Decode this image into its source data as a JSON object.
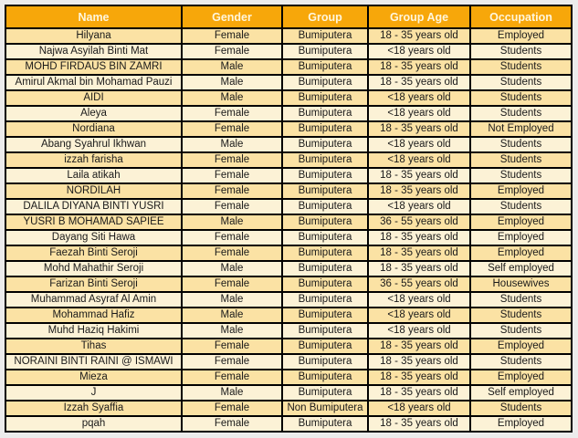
{
  "colors": {
    "page_bg": "#ECECEC",
    "header_bg": "#F7A70A",
    "header_text": "#FFF6DC",
    "row_odd_bg": "#FBE2A4",
    "row_even_bg": "#FCF2D6",
    "border": "#000000"
  },
  "table": {
    "columns": [
      "Name",
      "Gender",
      "Group",
      "Group Age",
      "Occupation"
    ],
    "rows": [
      [
        "Hilyana",
        "Female",
        "Bumiputera",
        "18 - 35 years old",
        "Employed"
      ],
      [
        "Najwa Asyilah Binti Mat",
        "Female",
        "Bumiputera",
        "<18 years old",
        "Students"
      ],
      [
        "MOHD FIRDAUS BIN ZAMRI",
        "Male",
        "Bumiputera",
        "18 - 35 years old",
        "Students"
      ],
      [
        "Amirul Akmal bin Mohamad Pauzi",
        "Male",
        "Bumiputera",
        "18 - 35 years old",
        "Students"
      ],
      [
        "AIDI",
        "Male",
        "Bumiputera",
        "<18 years old",
        "Students"
      ],
      [
        "Aleya",
        "Female",
        "Bumiputera",
        "<18 years old",
        "Students"
      ],
      [
        "Nordiana",
        "Female",
        "Bumiputera",
        "18 - 35 years old",
        "Not Employed"
      ],
      [
        "Abang Syahrul Ikhwan",
        "Male",
        "Bumiputera",
        "<18 years old",
        "Students"
      ],
      [
        "izzah farisha",
        "Female",
        "Bumiputera",
        "<18 years old",
        "Students"
      ],
      [
        "Laila atikah",
        "Female",
        "Bumiputera",
        "18 - 35 years old",
        "Students"
      ],
      [
        "NORDILAH",
        "Female",
        "Bumiputera",
        "18 - 35 years old",
        "Employed"
      ],
      [
        "DALILA DIYANA BINTI YUSRI",
        "Female",
        "Bumiputera",
        "<18 years old",
        "Students"
      ],
      [
        "YUSRI B MOHAMAD SAPIEE",
        "Male",
        "Bumiputera",
        "36 - 55 years old",
        "Employed"
      ],
      [
        "Dayang Siti Hawa",
        "Female",
        "Bumiputera",
        "18 - 35 years old",
        "Employed"
      ],
      [
        "Faezah Binti Seroji",
        "Female",
        "Bumiputera",
        "18 - 35 years old",
        "Employed"
      ],
      [
        "Mohd Mahathir Seroji",
        "Male",
        "Bumiputera",
        "18 - 35 years old",
        "Self employed"
      ],
      [
        "Farizan Binti Seroji",
        "Female",
        "Bumiputera",
        "36 - 55 years old",
        "Housewives"
      ],
      [
        "Muhammad Asyraf Al Amin",
        "Male",
        "Bumiputera",
        "<18 years old",
        "Students"
      ],
      [
        "Mohammad Hafiz",
        "Male",
        "Bumiputera",
        "<18 years old",
        "Students"
      ],
      [
        "Muhd Haziq Hakimi",
        "Male",
        "Bumiputera",
        "<18 years old",
        "Students"
      ],
      [
        "Tihas",
        "Female",
        "Bumiputera",
        "18 - 35 years old",
        "Employed"
      ],
      [
        "NORAINI BINTI RAINI @ ISMAWI",
        "Female",
        "Bumiputera",
        "18 - 35 years old",
        "Students"
      ],
      [
        "Mieza",
        "Female",
        "Bumiputera",
        "18 - 35 years old",
        "Employed"
      ],
      [
        "J",
        "Male",
        "Bumiputera",
        "18 - 35 years old",
        "Self employed"
      ],
      [
        "Izzah Syaffia",
        "Female",
        "Non Bumiputera",
        "<18 years old",
        "Students"
      ],
      [
        "pqah",
        "Female",
        "Bumiputera",
        "18 - 35 years old",
        "Employed"
      ]
    ]
  }
}
